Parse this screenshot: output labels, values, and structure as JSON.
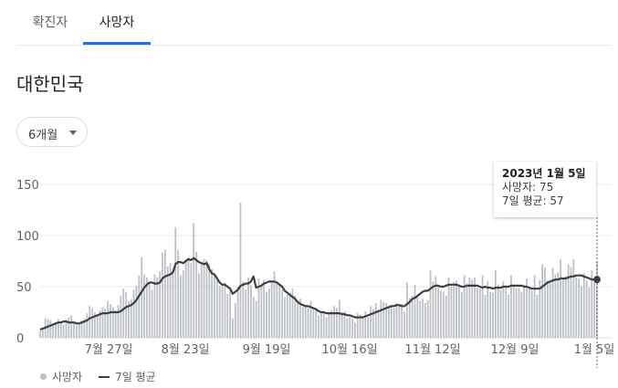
{
  "tabs": [
    {
      "label": "확진자",
      "selected": false
    },
    {
      "label": "사망자",
      "selected": true
    }
  ],
  "region": "대한민국",
  "period_selector": {
    "label": "6개월"
  },
  "tooltip": {
    "date": "2023년 1월 5일",
    "deaths": "사망자: 75",
    "avg": "7일 평균: 57"
  },
  "legend": {
    "series1": "사망자",
    "series2": "7일 평균"
  },
  "colors": {
    "accent": "#1a73e8",
    "bar": "#bdc1c6",
    "line": "#3c4043",
    "grid": "#e8eaed"
  },
  "chart_data": {
    "type": "bar",
    "ylim": [
      0,
      150
    ],
    "yticks": [
      "0",
      "50",
      "100",
      "150"
    ],
    "xticks": [
      "7월 27일",
      "8월 23일",
      "9월 19일",
      "10월 16일",
      "11월 12일",
      "12월 9일",
      "1월 5일"
    ],
    "series": [
      {
        "name": "사망자",
        "type": "bar",
        "values": [
          7,
          9,
          19,
          18,
          17,
          14,
          15,
          18,
          16,
          13,
          18,
          20,
          22,
          15,
          12,
          13,
          17,
          19,
          24,
          31,
          29,
          25,
          22,
          27,
          30,
          29,
          36,
          33,
          30,
          27,
          32,
          41,
          48,
          45,
          36,
          38,
          47,
          51,
          61,
          79,
          62,
          59,
          54,
          47,
          62,
          59,
          65,
          83,
          86,
          70,
          73,
          66,
          108,
          86,
          61,
          66,
          77,
          78,
          73,
          112,
          84,
          63,
          72,
          77,
          76,
          72,
          67,
          61,
          56,
          51,
          52,
          54,
          43,
          46,
          19,
          34,
          50,
          132,
          55,
          47,
          59,
          52,
          40,
          36,
          58,
          52,
          57,
          45,
          48,
          54,
          65,
          54,
          52,
          47,
          39,
          42,
          44,
          48,
          41,
          35,
          38,
          30,
          32,
          29,
          36,
          29,
          27,
          22,
          24,
          25,
          20,
          25,
          27,
          31,
          29,
          37,
          25,
          26,
          19,
          20,
          19,
          15,
          24,
          23,
          21,
          26,
          20,
          31,
          28,
          34,
          27,
          37,
          35,
          34,
          31,
          30,
          29,
          34,
          32,
          33,
          26,
          54,
          39,
          41,
          52,
          42,
          36,
          38,
          34,
          37,
          66,
          55,
          60,
          52,
          46,
          45,
          41,
          59,
          50,
          55,
          56,
          52,
          45,
          61,
          53,
          59,
          57,
          59,
          49,
          48,
          61,
          42,
          55,
          45,
          44,
          66,
          52,
          47,
          55,
          50,
          42,
          61,
          52,
          49,
          49,
          45,
          52,
          58,
          50,
          46,
          61,
          42,
          56,
          72,
          69,
          56,
          55,
          68,
          62,
          64,
          77,
          59,
          60,
          72,
          69,
          77,
          59,
          58,
          51,
          63,
          56,
          49,
          66,
          55,
          75
        ]
      },
      {
        "name": "7일 평균",
        "type": "line",
        "values": [
          8,
          9,
          10,
          11,
          12,
          13,
          14,
          15,
          15,
          16,
          16,
          15,
          15,
          15,
          14,
          14,
          15,
          16,
          17,
          19,
          20,
          21,
          22,
          23,
          24,
          24,
          24,
          25,
          25,
          25,
          25,
          26,
          28,
          30,
          31,
          32,
          34,
          37,
          41,
          45,
          49,
          52,
          54,
          54,
          53,
          53,
          54,
          58,
          60,
          61,
          62,
          64,
          72,
          74,
          74,
          73,
          75,
          77,
          76,
          78,
          76,
          74,
          73,
          72,
          73,
          67,
          63,
          62,
          58,
          54,
          52,
          52,
          50,
          48,
          43,
          45,
          47,
          51,
          52,
          53,
          53,
          55,
          60,
          49,
          50,
          51,
          53,
          54,
          55,
          55,
          55,
          54,
          52,
          50,
          46,
          44,
          42,
          40,
          38,
          35,
          33,
          32,
          31,
          31,
          30,
          29,
          28,
          26,
          25,
          25,
          24,
          24,
          24,
          24,
          24,
          24,
          23,
          23,
          22,
          22,
          21,
          20,
          20,
          20,
          20,
          21,
          22,
          23,
          24,
          25,
          26,
          27,
          28,
          29,
          30,
          31,
          31,
          32,
          32,
          31,
          31,
          33,
          35,
          38,
          39,
          41,
          43,
          45,
          46,
          46,
          48,
          50,
          51,
          51,
          50,
          50,
          51,
          52,
          52,
          52,
          52,
          51,
          50,
          50,
          51,
          51,
          51,
          51,
          51,
          50,
          49,
          50,
          49,
          49,
          48,
          49,
          49,
          49,
          50,
          50,
          50,
          51,
          51,
          51,
          51,
          51,
          50,
          50,
          49,
          48,
          48,
          48,
          48,
          50,
          52,
          54,
          55,
          56,
          57,
          57,
          58,
          58,
          58,
          59,
          60,
          60,
          61,
          61,
          61,
          60,
          59,
          58,
          57,
          57,
          57
        ]
      }
    ]
  }
}
